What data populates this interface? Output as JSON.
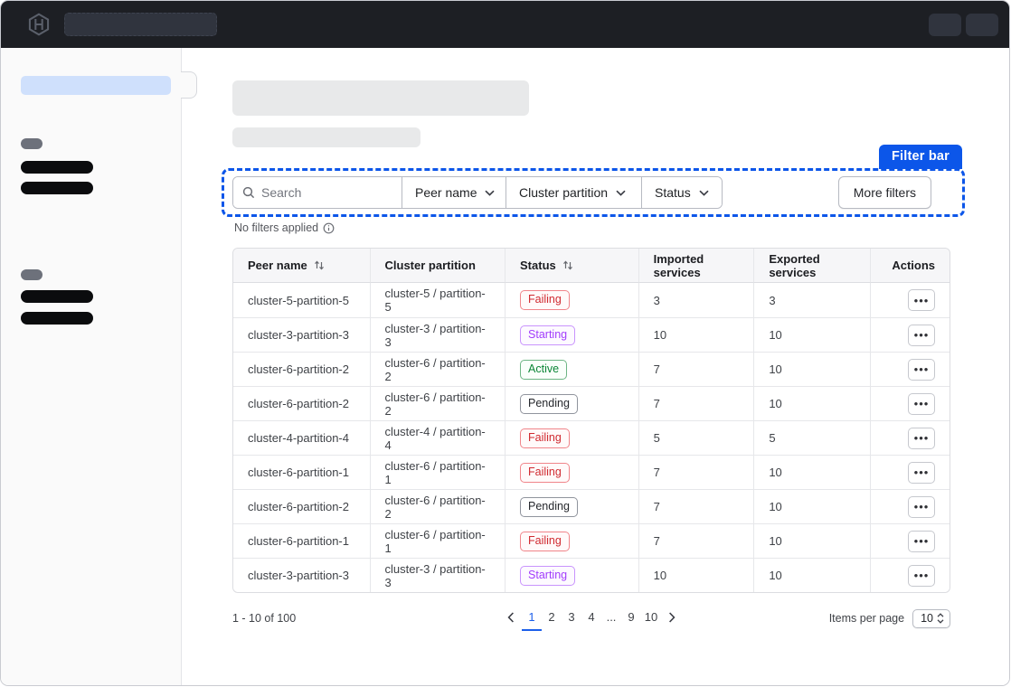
{
  "annotation": {
    "label": "Filter bar",
    "accent_color": "#0c56e9"
  },
  "filter_bar": {
    "search_placeholder": "Search",
    "dropdowns": [
      {
        "label": "Peer name"
      },
      {
        "label": "Cluster partition"
      },
      {
        "label": "Status"
      }
    ],
    "more_filters_label": "More filters",
    "applied_text": "No filters applied"
  },
  "table": {
    "columns": [
      {
        "label": "Peer name",
        "sortable": true,
        "align": "left"
      },
      {
        "label": "Cluster partition",
        "sortable": false,
        "align": "left"
      },
      {
        "label": "Status",
        "sortable": true,
        "align": "left"
      },
      {
        "label": "Imported services",
        "sortable": false,
        "align": "left"
      },
      {
        "label": "Exported services",
        "sortable": false,
        "align": "left"
      },
      {
        "label": "Actions",
        "sortable": false,
        "align": "right"
      }
    ],
    "rows": [
      {
        "peer": "cluster-5-partition-5",
        "partition": "cluster-5 / partition-5",
        "status": "Failing",
        "imported": "3",
        "exported": "3"
      },
      {
        "peer": "cluster-3-partition-3",
        "partition": "cluster-3 / partition-3",
        "status": "Starting",
        "imported": "10",
        "exported": "10"
      },
      {
        "peer": "cluster-6-partition-2",
        "partition": "cluster-6 / partition-2",
        "status": "Active",
        "imported": "7",
        "exported": "10"
      },
      {
        "peer": "cluster-6-partition-2",
        "partition": "cluster-6 / partition-2",
        "status": "Pending",
        "imported": "7",
        "exported": "10"
      },
      {
        "peer": "cluster-4-partition-4",
        "partition": "cluster-4 / partition-4",
        "status": "Failing",
        "imported": "5",
        "exported": "5"
      },
      {
        "peer": "cluster-6-partition-1",
        "partition": "cluster-6 / partition-1",
        "status": "Failing",
        "imported": "7",
        "exported": "10"
      },
      {
        "peer": "cluster-6-partition-2",
        "partition": "cluster-6 / partition-2",
        "status": "Pending",
        "imported": "7",
        "exported": "10"
      },
      {
        "peer": "cluster-6-partition-1",
        "partition": "cluster-6 / partition-1",
        "status": "Failing",
        "imported": "7",
        "exported": "10"
      },
      {
        "peer": "cluster-3-partition-3",
        "partition": "cluster-3 / partition-3",
        "status": "Starting",
        "imported": "10",
        "exported": "10"
      }
    ],
    "status_colors": {
      "Failing": "#d02b31",
      "Starting": "#a23dfc",
      "Active": "#0b8536",
      "Pending": "#26282d"
    }
  },
  "pagination": {
    "range_text": "1 - 10 of 100",
    "pages": [
      {
        "label": "1",
        "active": true
      },
      {
        "label": "2"
      },
      {
        "label": "3"
      },
      {
        "label": "4"
      },
      {
        "label": "...",
        "gap": true
      },
      {
        "label": "9"
      },
      {
        "label": "10"
      }
    ],
    "items_per_page_label": "Items per page",
    "items_per_page_value": "10"
  },
  "icons": {
    "logo": "hashicorp-hexagon-h",
    "search": "magnifier",
    "chevron_down": "chevron-down",
    "info": "info-circle",
    "sort": "arrows-up-down",
    "row_actions": "horizontal-ellipsis",
    "prev": "chevron-left",
    "next": "chevron-right",
    "select_caret": "chevrons-up-down"
  }
}
